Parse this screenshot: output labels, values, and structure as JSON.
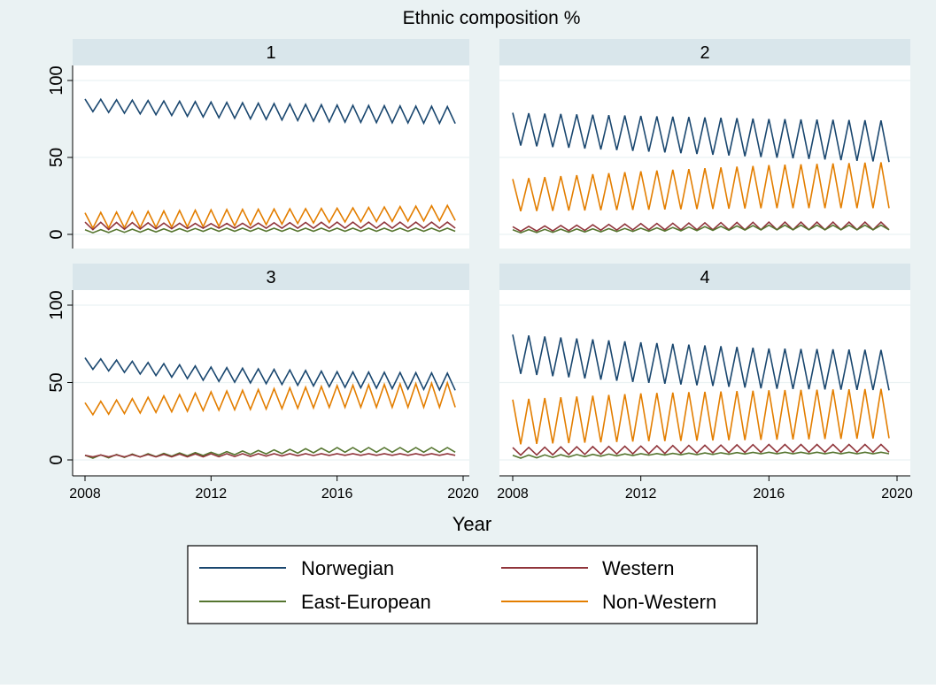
{
  "chart_data": {
    "type": "line",
    "title": "Ethnic composition %",
    "xlabel": "Year",
    "ylabel": "",
    "xlim": [
      2008,
      2020
    ],
    "ylim": [
      0,
      100
    ],
    "xticks": [
      2008,
      2012,
      2016,
      2020
    ],
    "yticks": [
      0,
      50,
      100
    ],
    "grid": "horizontal",
    "legend_position": "bottom",
    "pattern": "each series oscillates between a low and a high value at roughly quarterly steps; bounds listed per panel",
    "series_styles": [
      {
        "name": "Norwegian",
        "color": "#1a476f"
      },
      {
        "name": "Western",
        "color": "#90353b"
      },
      {
        "name": "East-European",
        "color": "#55752f"
      },
      {
        "name": "Non-Western",
        "color": "#e37e00"
      }
    ],
    "panels": [
      {
        "label": "1",
        "series": [
          {
            "name": "Norwegian",
            "low": [
              [
                2008,
                80
              ],
              [
                2012,
                76
              ],
              [
                2016,
                73
              ],
              [
                2019.75,
                72
              ]
            ],
            "high": [
              [
                2008,
                88
              ],
              [
                2012,
                86
              ],
              [
                2016,
                84
              ],
              [
                2019.75,
                83
              ]
            ]
          },
          {
            "name": "Non-Western",
            "low": [
              [
                2008,
                4
              ],
              [
                2012,
                5
              ],
              [
                2016,
                8
              ],
              [
                2019.75,
                9
              ]
            ],
            "high": [
              [
                2008,
                14
              ],
              [
                2012,
                16
              ],
              [
                2016,
                17
              ],
              [
                2019.75,
                19
              ]
            ]
          },
          {
            "name": "Western",
            "low": [
              [
                2008,
                3
              ],
              [
                2012,
                4
              ],
              [
                2016,
                4
              ],
              [
                2019.75,
                4
              ]
            ],
            "high": [
              [
                2008,
                8
              ],
              [
                2012,
                7
              ],
              [
                2016,
                8
              ],
              [
                2019.75,
                8
              ]
            ]
          },
          {
            "name": "East-European",
            "low": [
              [
                2008,
                1
              ],
              [
                2012,
                2
              ],
              [
                2016,
                2
              ],
              [
                2019.75,
                2
              ]
            ],
            "high": [
              [
                2008,
                3
              ],
              [
                2012,
                4
              ],
              [
                2016,
                4
              ],
              [
                2019.75,
                4
              ]
            ]
          }
        ]
      },
      {
        "label": "2",
        "series": [
          {
            "name": "Norwegian",
            "low": [
              [
                2008,
                58
              ],
              [
                2012,
                54
              ],
              [
                2016,
                50
              ],
              [
                2019.75,
                47
              ]
            ],
            "high": [
              [
                2008,
                79
              ],
              [
                2012,
                77
              ],
              [
                2016,
                75
              ],
              [
                2019.75,
                74
              ]
            ]
          },
          {
            "name": "Non-Western",
            "low": [
              [
                2008,
                15
              ],
              [
                2012,
                16
              ],
              [
                2016,
                17
              ],
              [
                2019.75,
                17
              ]
            ],
            "high": [
              [
                2008,
                36
              ],
              [
                2012,
                41
              ],
              [
                2016,
                45
              ],
              [
                2019.75,
                47
              ]
            ]
          },
          {
            "name": "Western",
            "low": [
              [
                2008,
                2
              ],
              [
                2012,
                3
              ],
              [
                2016,
                3
              ],
              [
                2019.75,
                3
              ]
            ],
            "high": [
              [
                2008,
                5
              ],
              [
                2012,
                7
              ],
              [
                2016,
                8
              ],
              [
                2019.75,
                8
              ]
            ]
          },
          {
            "name": "East-European",
            "low": [
              [
                2008,
                1
              ],
              [
                2012,
                2
              ],
              [
                2016,
                3
              ],
              [
                2019.75,
                3
              ]
            ],
            "high": [
              [
                2008,
                3
              ],
              [
                2012,
                4
              ],
              [
                2016,
                6
              ],
              [
                2019.75,
                6
              ]
            ]
          }
        ]
      },
      {
        "label": "3",
        "series": [
          {
            "name": "Norwegian",
            "low": [
              [
                2008,
                59
              ],
              [
                2012,
                51
              ],
              [
                2016,
                47
              ],
              [
                2019.75,
                45
              ]
            ],
            "high": [
              [
                2008,
                66
              ],
              [
                2012,
                60
              ],
              [
                2016,
                57
              ],
              [
                2019.75,
                56
              ]
            ]
          },
          {
            "name": "Non-Western",
            "low": [
              [
                2008,
                29
              ],
              [
                2012,
                32
              ],
              [
                2016,
                34
              ],
              [
                2019.75,
                34
              ]
            ],
            "high": [
              [
                2008,
                37
              ],
              [
                2012,
                44
              ],
              [
                2016,
                48
              ],
              [
                2019.75,
                50
              ]
            ]
          },
          {
            "name": "East-European",
            "low": [
              [
                2008,
                1
              ],
              [
                2012,
                3
              ],
              [
                2016,
                5
              ],
              [
                2019.75,
                5
              ]
            ],
            "high": [
              [
                2008,
                3
              ],
              [
                2012,
                5
              ],
              [
                2016,
                8
              ],
              [
                2019.75,
                8
              ]
            ]
          },
          {
            "name": "Western",
            "low": [
              [
                2008,
                2
              ],
              [
                2012,
                2
              ],
              [
                2016,
                3
              ],
              [
                2019.75,
                3
              ]
            ],
            "high": [
              [
                2008,
                3
              ],
              [
                2012,
                4
              ],
              [
                2016,
                4
              ],
              [
                2019.75,
                4
              ]
            ]
          }
        ]
      },
      {
        "label": "4",
        "series": [
          {
            "name": "Norwegian",
            "low": [
              [
                2008,
                56
              ],
              [
                2012,
                50
              ],
              [
                2016,
                46
              ],
              [
                2019.75,
                45
              ]
            ],
            "high": [
              [
                2008,
                81
              ],
              [
                2012,
                76
              ],
              [
                2016,
                72
              ],
              [
                2019.75,
                71
              ]
            ]
          },
          {
            "name": "Non-Western",
            "low": [
              [
                2008,
                10
              ],
              [
                2012,
                12
              ],
              [
                2016,
                13
              ],
              [
                2019.75,
                14
              ]
            ],
            "high": [
              [
                2008,
                39
              ],
              [
                2012,
                43
              ],
              [
                2016,
                45
              ],
              [
                2019.75,
                46
              ]
            ]
          },
          {
            "name": "Western",
            "low": [
              [
                2008,
                3
              ],
              [
                2012,
                4
              ],
              [
                2016,
                5
              ],
              [
                2019.75,
                5
              ]
            ],
            "high": [
              [
                2008,
                8
              ],
              [
                2012,
                9
              ],
              [
                2016,
                10
              ],
              [
                2019.75,
                10
              ]
            ]
          },
          {
            "name": "East-European",
            "low": [
              [
                2008,
                1
              ],
              [
                2012,
                3
              ],
              [
                2016,
                4
              ],
              [
                2019.75,
                4
              ]
            ],
            "high": [
              [
                2008,
                3
              ],
              [
                2012,
                4
              ],
              [
                2016,
                5
              ],
              [
                2019.75,
                5
              ]
            ]
          }
        ]
      }
    ],
    "legend": [
      "Norwegian",
      "Western",
      "East-European",
      "Non-Western"
    ]
  }
}
